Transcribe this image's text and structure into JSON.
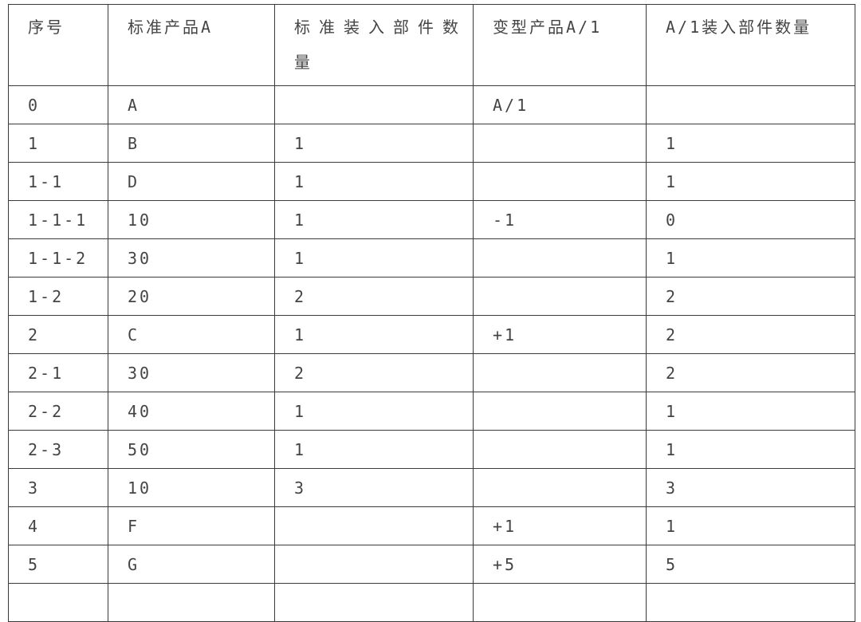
{
  "table": {
    "header": [
      "序号",
      "标准产品A",
      "标准装入部件数量",
      "变型产品A/1",
      "A/1装入部件数量"
    ],
    "rows": [
      [
        "0",
        "A",
        null,
        "A/1",
        null
      ],
      [
        "1",
        "B",
        "1",
        null,
        "1"
      ],
      [
        "1-1",
        "D",
        "1",
        null,
        "1"
      ],
      [
        "1-1-1",
        "10",
        "1",
        "-1",
        "0"
      ],
      [
        "1-1-2",
        "30",
        "1",
        null,
        "1"
      ],
      [
        "1-2",
        "20",
        "2",
        null,
        "2"
      ],
      [
        "2",
        "C",
        "1",
        "+1",
        "2"
      ],
      [
        "2-1",
        "30",
        "2",
        null,
        "2"
      ],
      [
        "2-2",
        "40",
        "1",
        null,
        "1"
      ],
      [
        "2-3",
        "50",
        "1",
        null,
        "1"
      ],
      [
        "3",
        "10",
        "3",
        null,
        "3"
      ],
      [
        "4",
        "F",
        null,
        "+1",
        "1"
      ],
      [
        "5",
        "G",
        null,
        "+5",
        "5"
      ],
      [
        null,
        null,
        null,
        null,
        null
      ]
    ]
  }
}
